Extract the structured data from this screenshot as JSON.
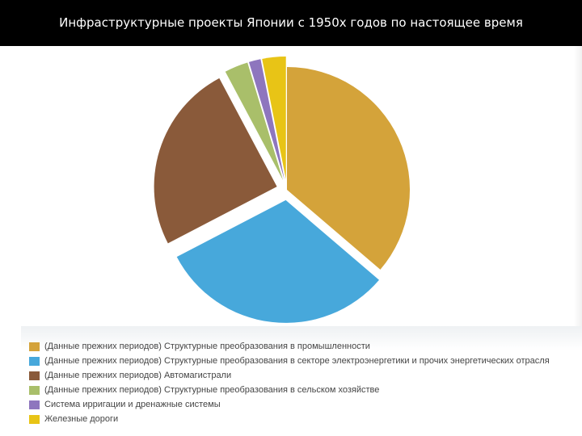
{
  "title": "Инфраструктурные проекты Японии  с 1950х годов по настоящее время",
  "chart_data": {
    "type": "pie",
    "title": "",
    "slices": [
      {
        "label": "(Данные прежних периодов) Структурные преобразования в промышленности",
        "value": 35,
        "color": "#D4A33A",
        "exploded": false
      },
      {
        "label": "(Данные прежних периодов) Структурные преобразования в секторе электроэнергетики и прочих энергетических отрасля",
        "value": 30,
        "color": "#47A8DB",
        "exploded": true
      },
      {
        "label": "(Данные прежних периодов) Автомагистрали",
        "value": 24,
        "color": "#8A5A3A",
        "exploded": true
      },
      {
        "label": "(Данные прежних периодов) Структурные преобразования в сельском хозяйстве",
        "value": 3,
        "color": "#A9BF6A",
        "exploded": true
      },
      {
        "label": "Система ирригации и дренажные системы",
        "value": 1.5,
        "color": "#8E76BE",
        "exploded": true
      },
      {
        "label": "Железные дороги",
        "value": 3,
        "color": "#E8C416",
        "exploded": true
      }
    ],
    "legend_position": "bottom"
  }
}
